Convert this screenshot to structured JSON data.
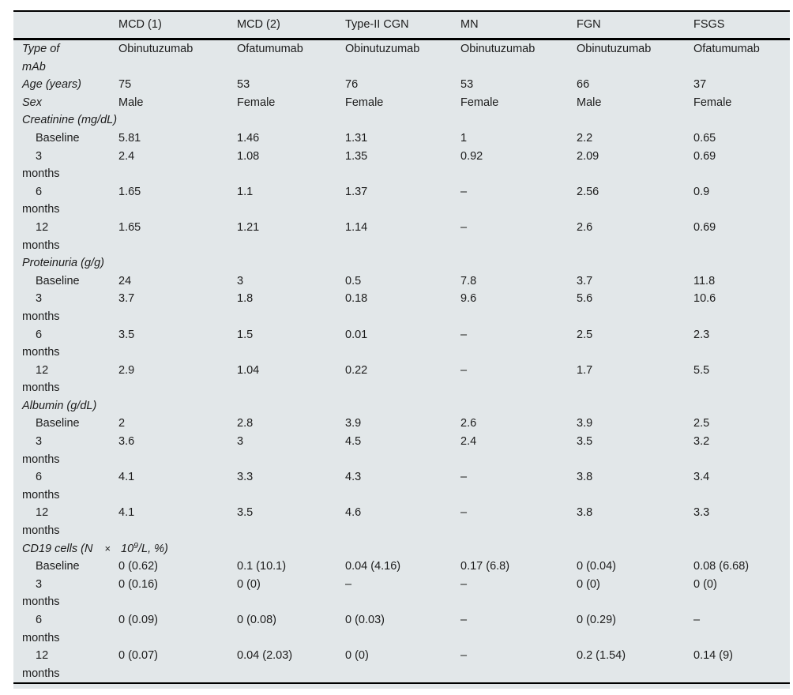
{
  "table": {
    "columns": [
      "",
      "MCD (1)",
      "MCD (2)",
      "Type-II CGN",
      "MN",
      "FGN",
      "FSGS"
    ],
    "cd19_label": {
      "pre": "CD19 cells (N",
      "times": "×",
      "base": "10",
      "sup": "9",
      "post": "/L, %)"
    },
    "rows": [
      {
        "type": "attr",
        "label": "Type of\nmAb",
        "values": [
          "Obinutuzumab",
          "Ofatumumab",
          "Obinutuzumab",
          "Obinutuzumab",
          "Obinutuzumab",
          "Ofatumumab"
        ]
      },
      {
        "type": "attr",
        "label": "Age (years)",
        "values": [
          "75",
          "53",
          "76",
          "53",
          "66",
          "37"
        ]
      },
      {
        "type": "attr",
        "label": "Sex",
        "values": [
          "Male",
          "Female",
          "Female",
          "Female",
          "Male",
          "Female"
        ]
      },
      {
        "type": "section",
        "label": "Creatinine (mg/dL)"
      },
      {
        "type": "sub",
        "label": "Baseline",
        "values": [
          "5.81",
          "1.46",
          "1.31",
          "1",
          "2.2",
          "0.65"
        ]
      },
      {
        "type": "sub",
        "label": "3\nmonths",
        "values": [
          "2.4",
          "1.08",
          "1.35",
          "0.92",
          "2.09",
          "0.69"
        ]
      },
      {
        "type": "sub",
        "label": "6\nmonths",
        "values": [
          "1.65",
          "1.1",
          "1.37",
          "–",
          "2.56",
          "0.9"
        ]
      },
      {
        "type": "sub",
        "label": "12\nmonths",
        "values": [
          "1.65",
          "1.21",
          "1.14",
          "–",
          "2.6",
          "0.69"
        ]
      },
      {
        "type": "section",
        "label": "Proteinuria (g/g)"
      },
      {
        "type": "sub",
        "label": "Baseline",
        "values": [
          "24",
          "3",
          "0.5",
          "7.8",
          "3.7",
          "11.8"
        ]
      },
      {
        "type": "sub",
        "label": "3\nmonths",
        "values": [
          "3.7",
          "1.8",
          "0.18",
          "9.6",
          "5.6",
          "10.6"
        ]
      },
      {
        "type": "sub",
        "label": "6\nmonths",
        "values": [
          "3.5",
          "1.5",
          "0.01",
          "–",
          "2.5",
          "2.3"
        ]
      },
      {
        "type": "sub",
        "label": "12\nmonths",
        "values": [
          "2.9",
          "1.04",
          "0.22",
          "–",
          "1.7",
          "5.5"
        ]
      },
      {
        "type": "section",
        "label": "Albumin (g/dL)"
      },
      {
        "type": "sub",
        "label": "Baseline",
        "values": [
          "2",
          "2.8",
          "3.9",
          "2.6",
          "3.9",
          "2.5"
        ]
      },
      {
        "type": "sub",
        "label": "3\nmonths",
        "values": [
          "3.6",
          "3",
          "4.5",
          "2.4",
          "3.5",
          "3.2"
        ]
      },
      {
        "type": "sub",
        "label": "6\nmonths",
        "values": [
          "4.1",
          "3.3",
          "4.3",
          "–",
          "3.8",
          "3.4"
        ]
      },
      {
        "type": "sub",
        "label": "12\nmonths",
        "values": [
          "4.1",
          "3.5",
          "4.6",
          "–",
          "3.8",
          "3.3"
        ]
      },
      {
        "type": "section_cd19"
      },
      {
        "type": "sub",
        "label": "Baseline",
        "values": [
          "0 (0.62)",
          "0.1 (10.1)",
          "0.04 (4.16)",
          "0.17 (6.8)",
          "0 (0.04)",
          "0.08 (6.68)"
        ]
      },
      {
        "type": "sub",
        "label": "3\nmonths",
        "values": [
          "0 (0.16)",
          "0 (0)",
          "–",
          "–",
          "0 (0)",
          "0 (0)"
        ]
      },
      {
        "type": "sub",
        "label": "6\nmonths",
        "values": [
          "0 (0.09)",
          "0 (0.08)",
          "0 (0.03)",
          "–",
          "0 (0.29)",
          "–"
        ]
      },
      {
        "type": "sub",
        "label": "12\nmonths",
        "values": [
          "0 (0.07)",
          "0.04 (2.03)",
          "0 (0)",
          "–",
          "0.2 (1.54)",
          "0.14 (9)"
        ]
      }
    ]
  },
  "style_tokens": {
    "sheet_background": "#e2e7e9",
    "rule_color": "#000000",
    "text_color": "#1c1c1c"
  }
}
